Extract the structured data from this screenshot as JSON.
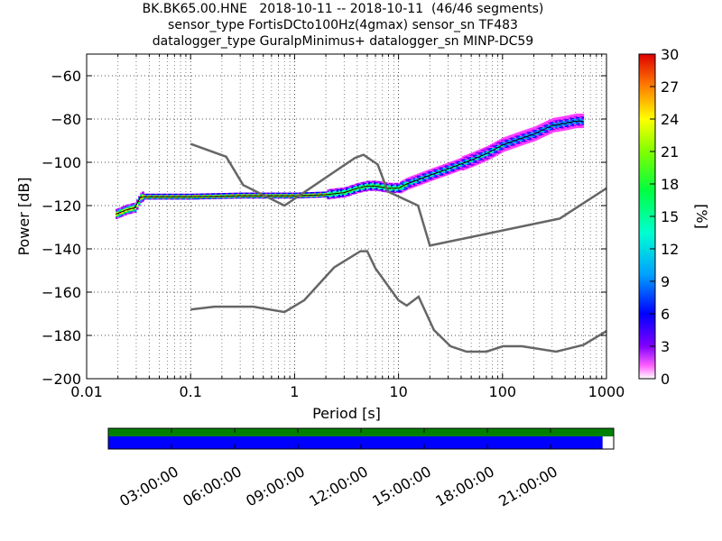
{
  "title_lines": [
    "BK.BK65.00.HNE   2018-10-11 -- 2018-10-11  (46/46 segments)",
    "sensor_type FortisDCto100Hz(4gmax) sensor_sn TF483",
    "datalogger_type GuralpMinimus+ datalogger_sn MINP-DC59"
  ],
  "chart_data": {
    "type": "heatmap",
    "xlabel": "Period [s]",
    "ylabel": "Power [dB]",
    "x_scale": "log",
    "xlim": [
      0.01,
      1000
    ],
    "ylim": [
      -200,
      -50
    ],
    "x_ticks": [
      0.01,
      0.1,
      1,
      10,
      100,
      1000
    ],
    "x_tick_labels": [
      "0.01",
      "0.1",
      "1",
      "10",
      "100",
      "1000"
    ],
    "y_ticks": [
      -200,
      -180,
      -160,
      -140,
      -120,
      -100,
      -80,
      -60
    ],
    "y_tick_labels": [
      "−200",
      "−180",
      "−160",
      "−140",
      "−120",
      "−100",
      "−80",
      "−60"
    ],
    "grid": true,
    "colorbar": {
      "label": "[%]",
      "range": [
        0,
        30
      ],
      "ticks": [
        "0",
        "3",
        "6",
        "9",
        "12",
        "15",
        "18",
        "21",
        "24",
        "27",
        "30"
      ],
      "colormap": [
        "#ffffff",
        "#ff00ff",
        "#8000ff",
        "#0000ff",
        "#00a0ff",
        "#00ffd0",
        "#00ff40",
        "#80ff00",
        "#ffff00",
        "#ffa000",
        "#ff4000",
        "#e00000"
      ]
    },
    "mode_curve": [
      [
        0.019,
        -124
      ],
      [
        0.024,
        -122
      ],
      [
        0.029,
        -121
      ],
      [
        0.033,
        -116
      ],
      [
        0.05,
        -116
      ],
      [
        0.1,
        -116
      ],
      [
        0.3,
        -115.5
      ],
      [
        1,
        -115.5
      ],
      [
        2,
        -115
      ],
      [
        3,
        -114
      ],
      [
        4,
        -112
      ],
      [
        5,
        -111
      ],
      [
        6,
        -111
      ],
      [
        8,
        -112
      ],
      [
        10,
        -112
      ],
      [
        12,
        -110
      ],
      [
        20,
        -106
      ],
      [
        30,
        -103
      ],
      [
        50,
        -99
      ],
      [
        70,
        -96
      ],
      [
        100,
        -92
      ],
      [
        150,
        -89
      ],
      [
        200,
        -87
      ],
      [
        300,
        -83
      ],
      [
        400,
        -82
      ],
      [
        500,
        -81
      ],
      [
        600,
        -81
      ]
    ],
    "nhnm": [
      [
        0.1,
        -91.5
      ],
      [
        0.22,
        -97.4
      ],
      [
        0.32,
        -110.5
      ],
      [
        0.8,
        -120
      ],
      [
        3.8,
        -98
      ],
      [
        4.6,
        -96.5
      ],
      [
        6.3,
        -101
      ],
      [
        7.9,
        -113.5
      ],
      [
        15.4,
        -120
      ],
      [
        20,
        -138.5
      ],
      [
        354.8,
        -126
      ],
      [
        1000,
        -112
      ]
    ],
    "nlnm": [
      [
        0.1,
        -168
      ],
      [
        0.17,
        -166.7
      ],
      [
        0.4,
        -166.7
      ],
      [
        0.8,
        -169.2
      ],
      [
        1.24,
        -163.7
      ],
      [
        2.4,
        -148.6
      ],
      [
        4.3,
        -141.1
      ],
      [
        5,
        -141.1
      ],
      [
        6,
        -149
      ],
      [
        10,
        -163.8
      ],
      [
        12,
        -166.2
      ],
      [
        15.6,
        -162.1
      ],
      [
        21.9,
        -177.5
      ],
      [
        31.6,
        -185
      ],
      [
        45,
        -187.5
      ],
      [
        70,
        -187.5
      ],
      [
        101,
        -185
      ],
      [
        154,
        -185
      ],
      [
        328,
        -187.5
      ],
      [
        600,
        -184.4
      ],
      [
        1000,
        -178
      ]
    ],
    "timeline": {
      "tick_labels": [
        "03:00:00",
        "06:00:00",
        "09:00:00",
        "12:00:00",
        "15:00:00",
        "18:00:00",
        "21:00:00"
      ],
      "data_coverage_fraction": 0.978,
      "colors": {
        "green": "#008000",
        "blue": "#0000ff"
      }
    }
  }
}
